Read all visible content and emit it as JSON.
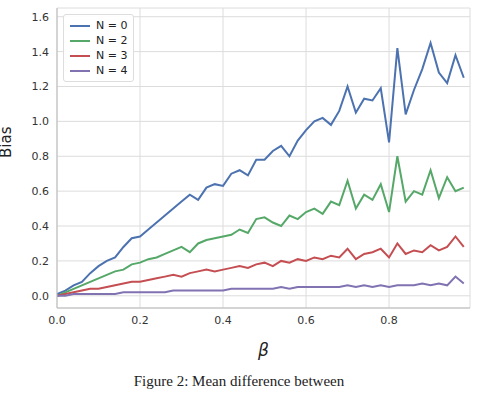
{
  "chart_data": {
    "type": "line",
    "caption": "Figure 2: Mean difference between",
    "x_label": "β",
    "y_label": "Bias",
    "x": [
      0,
      0.02,
      0.04,
      0.06,
      0.08,
      0.1,
      0.12,
      0.14,
      0.16,
      0.18,
      0.2,
      0.22,
      0.24,
      0.26,
      0.28,
      0.3,
      0.32,
      0.34,
      0.36,
      0.38,
      0.4,
      0.42,
      0.44,
      0.46,
      0.48,
      0.5,
      0.52,
      0.54,
      0.56,
      0.58,
      0.6,
      0.62,
      0.64,
      0.66,
      0.68,
      0.7,
      0.72,
      0.74,
      0.76,
      0.78,
      0.8,
      0.82,
      0.84,
      0.86,
      0.88,
      0.9,
      0.92,
      0.94,
      0.96,
      0.98
    ],
    "series": [
      {
        "name": "N = 0",
        "color": "#4c72b0",
        "values": [
          0.01,
          0.03,
          0.06,
          0.08,
          0.13,
          0.17,
          0.2,
          0.22,
          0.28,
          0.33,
          0.34,
          0.38,
          0.42,
          0.46,
          0.5,
          0.54,
          0.58,
          0.55,
          0.62,
          0.64,
          0.63,
          0.7,
          0.72,
          0.69,
          0.78,
          0.78,
          0.83,
          0.86,
          0.8,
          0.89,
          0.95,
          1.0,
          1.02,
          0.98,
          1.06,
          1.2,
          1.05,
          1.13,
          1.12,
          1.19,
          0.88,
          1.42,
          1.04,
          1.18,
          1.3,
          1.45,
          1.28,
          1.22,
          1.38,
          1.25
        ]
      },
      {
        "name": "N = 2",
        "color": "#55a868",
        "values": [
          0.0,
          0.02,
          0.04,
          0.06,
          0.08,
          0.1,
          0.12,
          0.14,
          0.15,
          0.18,
          0.19,
          0.21,
          0.22,
          0.24,
          0.26,
          0.28,
          0.25,
          0.3,
          0.32,
          0.33,
          0.34,
          0.35,
          0.38,
          0.36,
          0.44,
          0.45,
          0.42,
          0.4,
          0.46,
          0.44,
          0.48,
          0.5,
          0.47,
          0.54,
          0.52,
          0.66,
          0.5,
          0.58,
          0.55,
          0.64,
          0.48,
          0.8,
          0.54,
          0.6,
          0.58,
          0.72,
          0.56,
          0.68,
          0.6,
          0.62
        ]
      },
      {
        "name": "N = 3",
        "color": "#c44e52",
        "values": [
          0.0,
          0.01,
          0.02,
          0.03,
          0.04,
          0.04,
          0.05,
          0.06,
          0.07,
          0.08,
          0.08,
          0.09,
          0.1,
          0.11,
          0.12,
          0.11,
          0.13,
          0.14,
          0.15,
          0.14,
          0.15,
          0.16,
          0.17,
          0.16,
          0.18,
          0.19,
          0.17,
          0.2,
          0.19,
          0.21,
          0.2,
          0.22,
          0.21,
          0.23,
          0.22,
          0.27,
          0.21,
          0.24,
          0.25,
          0.27,
          0.22,
          0.3,
          0.24,
          0.26,
          0.25,
          0.29,
          0.26,
          0.28,
          0.34,
          0.28
        ]
      },
      {
        "name": "N = 4",
        "color": "#8172b2",
        "values": [
          0.0,
          0.0,
          0.01,
          0.01,
          0.01,
          0.01,
          0.01,
          0.01,
          0.02,
          0.02,
          0.02,
          0.02,
          0.02,
          0.02,
          0.03,
          0.03,
          0.03,
          0.03,
          0.03,
          0.03,
          0.03,
          0.04,
          0.04,
          0.04,
          0.04,
          0.04,
          0.04,
          0.05,
          0.04,
          0.05,
          0.05,
          0.05,
          0.05,
          0.05,
          0.05,
          0.06,
          0.05,
          0.06,
          0.05,
          0.06,
          0.05,
          0.06,
          0.06,
          0.06,
          0.07,
          0.06,
          0.07,
          0.06,
          0.11,
          0.07
        ]
      }
    ],
    "xlim": [
      0,
      0.995
    ],
    "xticks": [
      {
        "value": 0,
        "label": "0.0"
      },
      {
        "value": 0.2,
        "label": "0.2"
      },
      {
        "value": 0.4,
        "label": "0.4"
      },
      {
        "value": 0.6,
        "label": "0.6"
      },
      {
        "value": 0.8,
        "label": "0.8"
      }
    ],
    "ylim": [
      -0.07,
      1.65
    ],
    "yticks": [
      {
        "value": 0,
        "label": "0.0"
      },
      {
        "value": 0.2,
        "label": "0.2"
      },
      {
        "value": 0.4,
        "label": "0.4"
      },
      {
        "value": 0.6,
        "label": "0.6"
      },
      {
        "value": 0.8,
        "label": "0.8"
      },
      {
        "value": 1.0,
        "label": "1.0"
      },
      {
        "value": 1.2,
        "label": "1.2"
      },
      {
        "value": 1.4,
        "label": "1.4"
      },
      {
        "value": 1.6,
        "label": "1.6"
      }
    ],
    "grid": true,
    "legend": "upper left"
  }
}
